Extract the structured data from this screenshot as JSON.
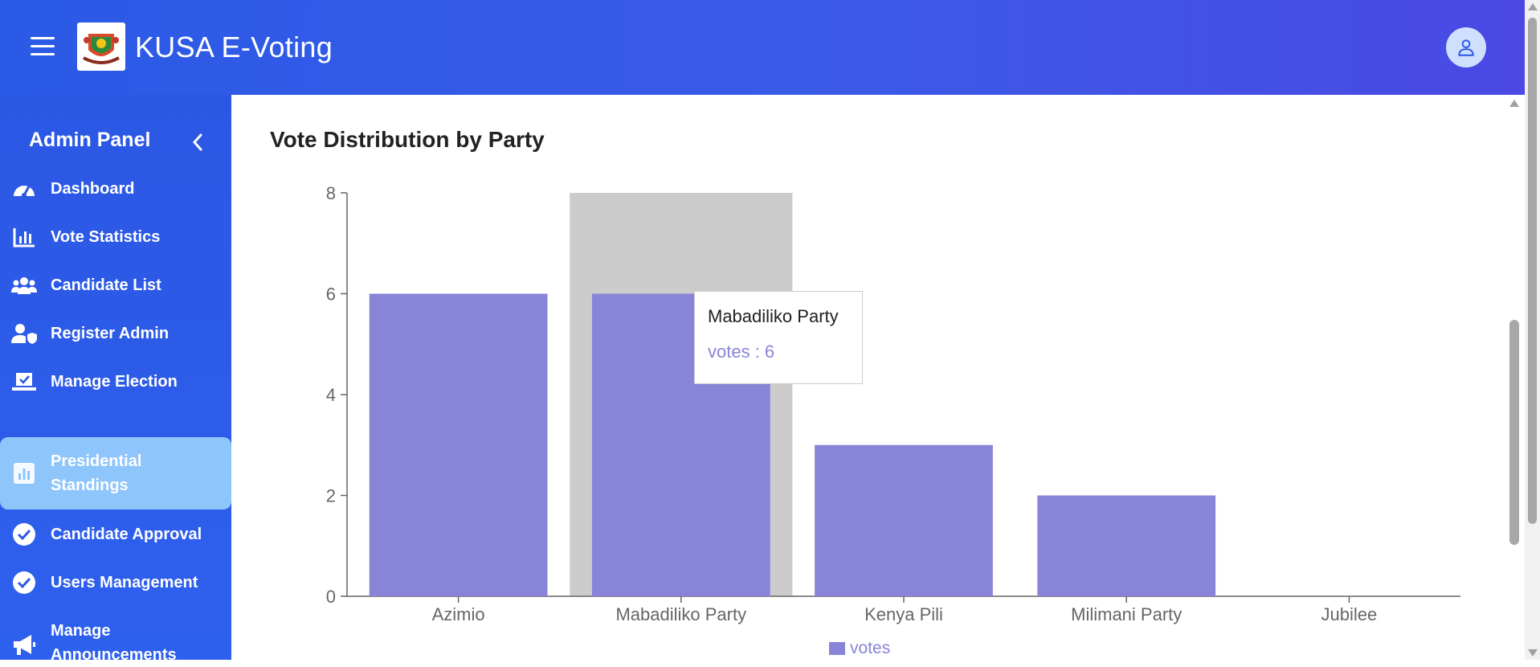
{
  "header": {
    "app_title": "KUSA E-Voting",
    "menu_icon": "hamburger-menu-icon",
    "logo_icon": "crest-logo-icon",
    "avatar_icon": "user-icon"
  },
  "sidebar": {
    "title": "Admin Panel",
    "collapse_icon": "chevron-left-icon",
    "items": [
      {
        "label": "Dashboard",
        "icon": "dashboard-gauge-icon",
        "active": false
      },
      {
        "label": "Vote Statistics",
        "icon": "bar-chart-icon",
        "active": false
      },
      {
        "label": "Candidate List",
        "icon": "users-group-icon",
        "active": false
      },
      {
        "label": "Register Admin",
        "icon": "user-shield-icon",
        "active": false
      },
      {
        "label": "Manage Election",
        "icon": "ballot-box-icon",
        "active": false
      },
      {
        "label": "Presidential\nStandings",
        "icon": "chart-square-icon",
        "active": true
      },
      {
        "label": "Candidate Approval",
        "icon": "check-circle-icon",
        "active": false
      },
      {
        "label": "Users Management",
        "icon": "check-circle-icon",
        "active": false
      },
      {
        "label": "Manage\nAnnouncements",
        "icon": "megaphone-icon",
        "active": false
      }
    ]
  },
  "main": {
    "chart_title": "Vote Distribution by Party"
  },
  "tooltip": {
    "name": "Mabadiliko Party",
    "value_text": "votes : 6"
  },
  "colors": {
    "accent": "#2b57e3",
    "bar": "#8884d8",
    "active_item": "#8ec5fb",
    "hover_band": "#cccccc"
  },
  "chart_data": {
    "type": "bar",
    "title": "Vote Distribution by Party",
    "categories": [
      "Azimio",
      "Mabadiliko Party",
      "Kenya Pili",
      "Milimani Party",
      "Jubilee"
    ],
    "series": [
      {
        "name": "votes",
        "values": [
          6,
          6,
          3,
          2,
          0
        ]
      }
    ],
    "ylim": [
      0,
      8
    ],
    "yticks": [
      0,
      2,
      4,
      6,
      8
    ],
    "grid": false,
    "legend": "bottom-center",
    "highlighted_category": "Mabadiliko Party"
  }
}
